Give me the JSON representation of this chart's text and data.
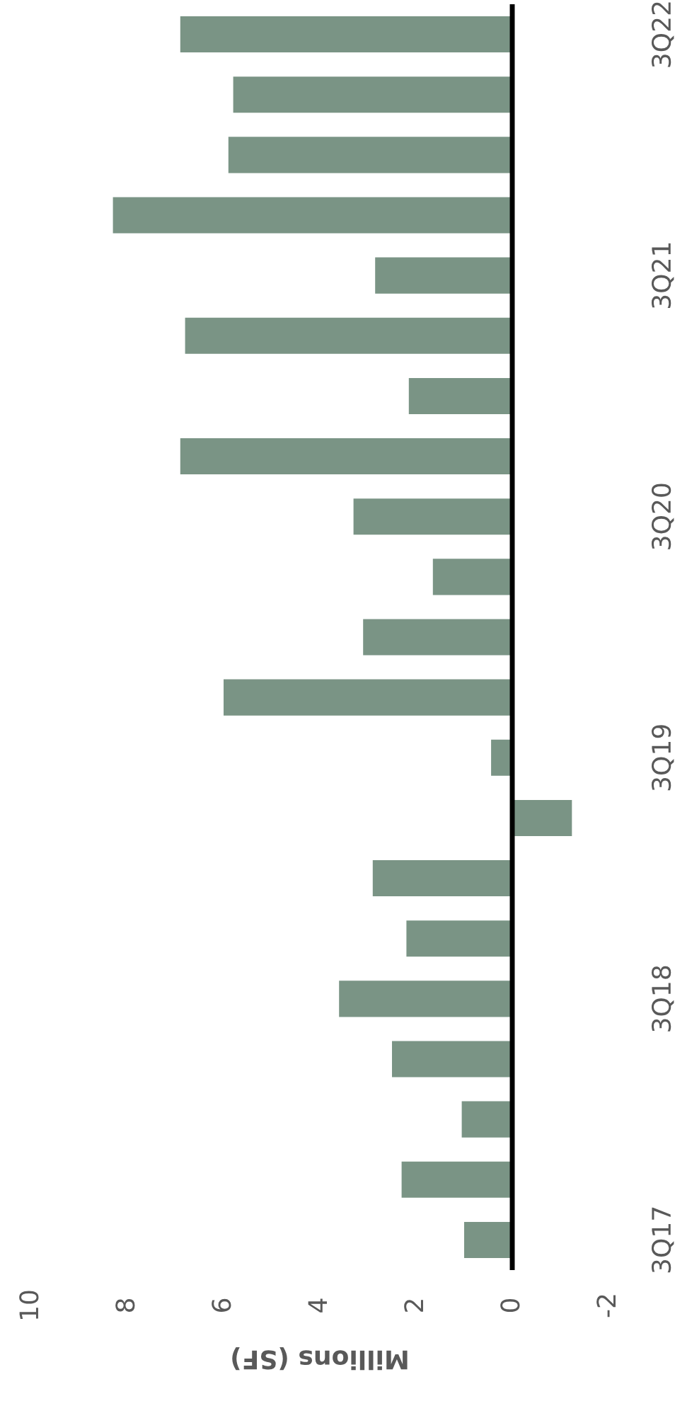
{
  "chart_data": {
    "type": "bar",
    "orientation": "horizontal",
    "xlabel": "Millions (SF)",
    "categories": [
      "3Q22",
      null,
      null,
      null,
      "3Q21",
      null,
      null,
      null,
      "3Q20",
      null,
      null,
      null,
      "3Q19",
      null,
      null,
      null,
      "3Q18",
      null,
      null,
      null,
      "3Q17"
    ],
    "values": [
      6.9,
      5.8,
      5.9,
      8.3,
      2.85,
      6.8,
      2.15,
      6.9,
      3.3,
      1.65,
      3.1,
      6.0,
      0.44,
      -1.24,
      2.9,
      2.2,
      3.6,
      2.5,
      1.05,
      2.3,
      1.0
    ],
    "color": "#7a9485",
    "xlim": [
      10,
      -2
    ],
    "xticks": [
      10,
      8,
      6,
      4,
      2,
      0,
      -2
    ],
    "ref_lines": [
      {
        "axis": "x",
        "value": 0,
        "color": "#000000"
      }
    ],
    "grid": false,
    "legend": false
  }
}
